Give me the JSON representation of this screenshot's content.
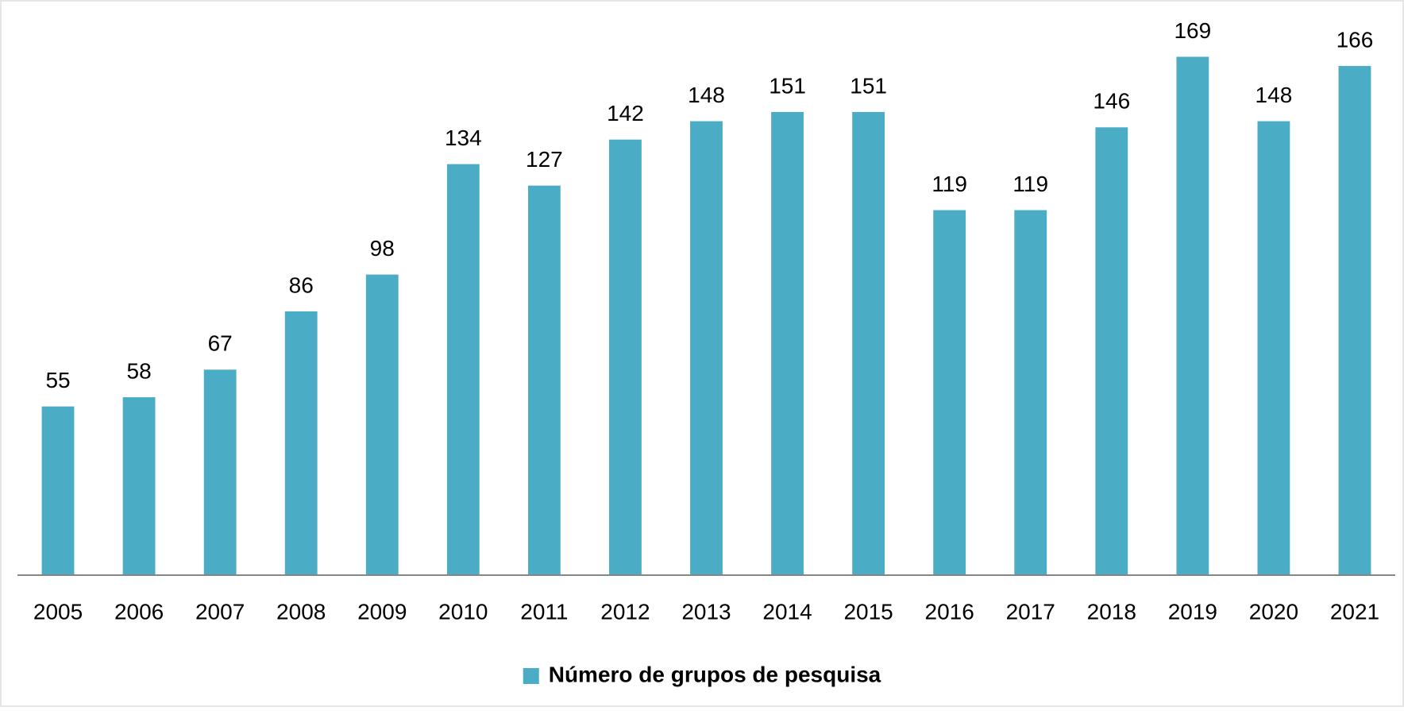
{
  "chart_data": {
    "type": "bar",
    "categories": [
      "2005",
      "2006",
      "2007",
      "2008",
      "2009",
      "2010",
      "2011",
      "2012",
      "2013",
      "2014",
      "2015",
      "2016",
      "2017",
      "2018",
      "2019",
      "2020",
      "2021"
    ],
    "series": [
      {
        "name": "Número de grupos de pesquisa",
        "color": "#4bacc6",
        "values": [
          55,
          58,
          67,
          86,
          98,
          134,
          127,
          142,
          148,
          151,
          151,
          119,
          119,
          146,
          169,
          148,
          166
        ]
      }
    ],
    "ylim": [
      0,
      180
    ],
    "legend": "bottom"
  }
}
